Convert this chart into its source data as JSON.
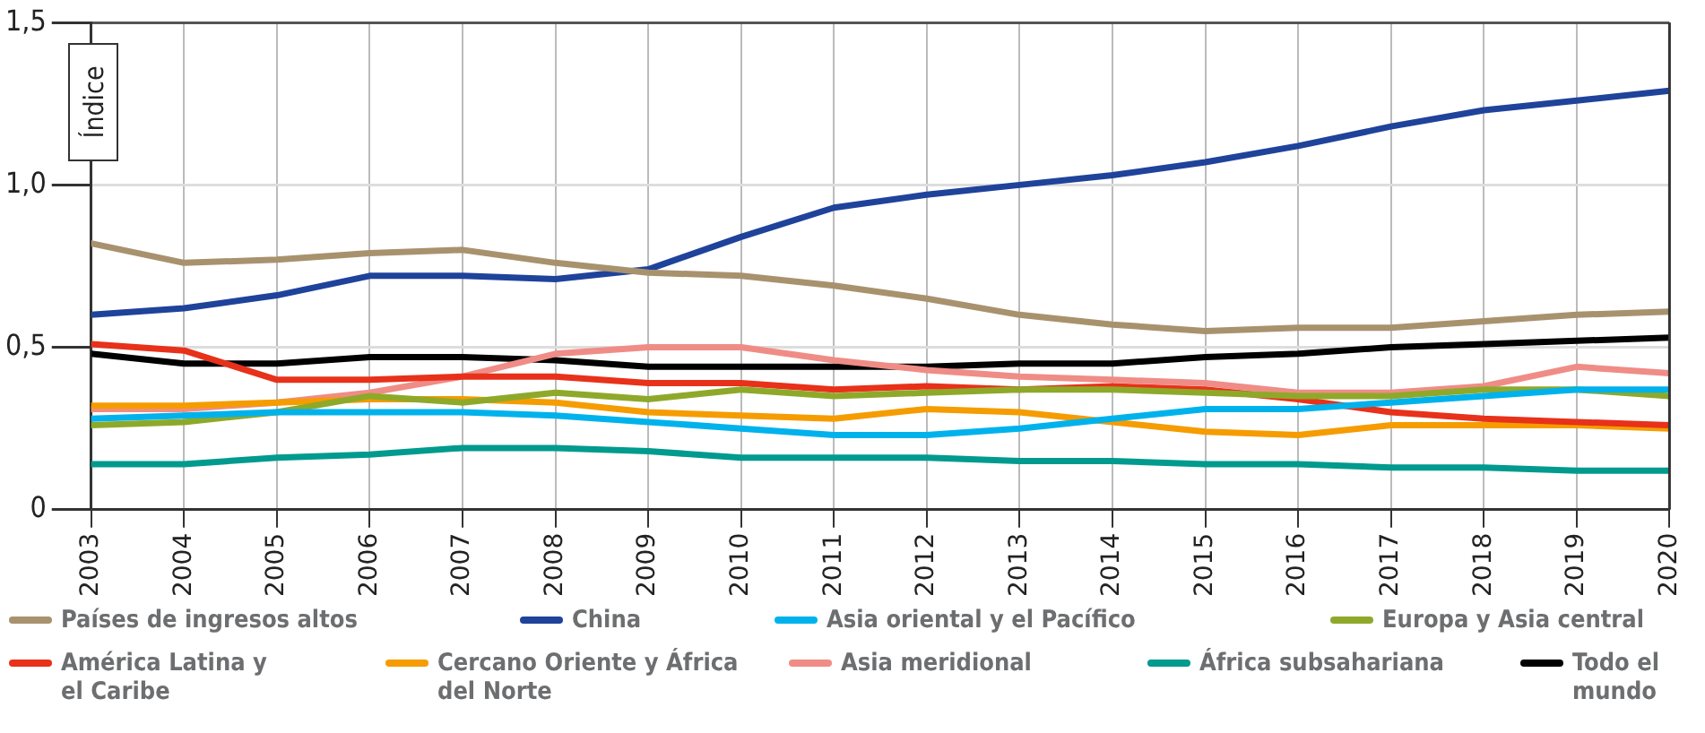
{
  "chart_data": {
    "type": "line",
    "ylabel": "Índice",
    "x": [
      2003,
      2004,
      2005,
      2006,
      2007,
      2008,
      2009,
      2010,
      2011,
      2012,
      2013,
      2014,
      2015,
      2016,
      2017,
      2018,
      2019,
      2020
    ],
    "xlim": [
      2003,
      2020
    ],
    "xticks": [
      2003,
      2004,
      2005,
      2006,
      2007,
      2008,
      2009,
      2010,
      2011,
      2012,
      2013,
      2014,
      2015,
      2016,
      2017,
      2018,
      2019,
      2020
    ],
    "ylim": [
      0,
      1.5
    ],
    "yticks": [
      {
        "value": 0,
        "label": "0"
      },
      {
        "value": 0.5,
        "label": "0,5"
      },
      {
        "value": 1,
        "label": "1,0"
      },
      {
        "value": 1.5,
        "label": "1,5"
      }
    ],
    "grid": true,
    "legend": "bottom",
    "marker": "none",
    "line_style": "solid",
    "series": [
      {
        "name": "Países de ingresos altos",
        "color": "#a8926e",
        "values": [
          0.82,
          0.76,
          0.77,
          0.79,
          0.8,
          0.76,
          0.73,
          0.72,
          0.69,
          0.65,
          0.6,
          0.57,
          0.55,
          0.56,
          0.56,
          0.58,
          0.6,
          0.61
        ]
      },
      {
        "name": "China",
        "color": "#1f439a",
        "values": [
          0.6,
          0.62,
          0.66,
          0.72,
          0.72,
          0.71,
          0.74,
          0.84,
          0.93,
          0.97,
          1.0,
          1.03,
          1.07,
          1.12,
          1.18,
          1.23,
          1.26,
          1.29
        ]
      },
      {
        "name": "Asia oriental y el Pacífico",
        "color": "#00b2ec",
        "values": [
          0.28,
          0.29,
          0.3,
          0.3,
          0.3,
          0.29,
          0.27,
          0.25,
          0.23,
          0.23,
          0.25,
          0.28,
          0.31,
          0.31,
          0.33,
          0.35,
          0.37,
          0.37
        ]
      },
      {
        "name": "Europa y Asia central",
        "color": "#8ea92a",
        "values": [
          0.26,
          0.27,
          0.3,
          0.35,
          0.33,
          0.36,
          0.34,
          0.37,
          0.35,
          0.36,
          0.37,
          0.37,
          0.36,
          0.35,
          0.35,
          0.37,
          0.37,
          0.35
        ]
      },
      {
        "name": "América Latina y el Caribe",
        "color": "#e8311a",
        "values": [
          0.51,
          0.49,
          0.4,
          0.4,
          0.41,
          0.41,
          0.39,
          0.39,
          0.37,
          0.38,
          0.37,
          0.38,
          0.37,
          0.34,
          0.3,
          0.28,
          0.27,
          0.26
        ]
      },
      {
        "name": "Cercano Oriente y África del Norte",
        "color": "#f59c00",
        "values": [
          0.32,
          0.32,
          0.33,
          0.34,
          0.34,
          0.33,
          0.3,
          0.29,
          0.28,
          0.31,
          0.3,
          0.27,
          0.24,
          0.23,
          0.26,
          0.26,
          0.26,
          0.25
        ]
      },
      {
        "name": "Asia meridional",
        "color": "#f08c86",
        "values": [
          0.31,
          0.31,
          0.33,
          0.36,
          0.41,
          0.48,
          0.5,
          0.5,
          0.46,
          0.43,
          0.41,
          0.4,
          0.39,
          0.36,
          0.36,
          0.38,
          0.44,
          0.42
        ]
      },
      {
        "name": "África subsahariana",
        "color": "#009a8e",
        "values": [
          0.14,
          0.14,
          0.16,
          0.17,
          0.19,
          0.19,
          0.18,
          0.16,
          0.16,
          0.16,
          0.15,
          0.15,
          0.14,
          0.14,
          0.13,
          0.13,
          0.12,
          0.12
        ]
      },
      {
        "name": "Todo el mundo",
        "color": "#000000",
        "values": [
          0.48,
          0.45,
          0.45,
          0.47,
          0.47,
          0.46,
          0.44,
          0.44,
          0.44,
          0.44,
          0.45,
          0.45,
          0.47,
          0.48,
          0.5,
          0.51,
          0.52,
          0.53
        ]
      }
    ]
  }
}
